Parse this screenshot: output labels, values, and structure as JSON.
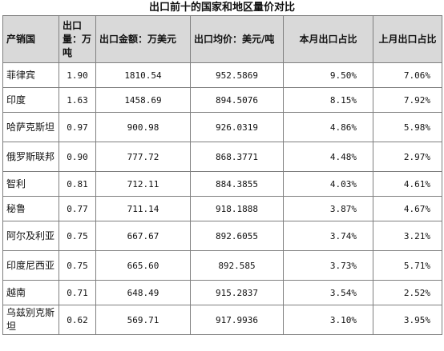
{
  "title": "出口前十的国家和地区量价对比",
  "headers": [
    "产销国",
    "出口量：万吨",
    "出口金额：万美元",
    "出口均价：美元/吨",
    "本月出口占比",
    "上月出口占比"
  ],
  "rows": [
    {
      "country": "菲律宾",
      "volume": "1.90",
      "amount": "1810.54",
      "price": "952.5869",
      "this_month": "9.50%",
      "last_month": "7.06%"
    },
    {
      "country": "印度",
      "volume": "1.63",
      "amount": "1458.69",
      "price": "894.5076",
      "this_month": "8.15%",
      "last_month": "7.92%"
    },
    {
      "country": "哈萨克斯坦",
      "volume": "0.97",
      "amount": "900.98",
      "price": "926.0319",
      "this_month": "4.86%",
      "last_month": "5.98%"
    },
    {
      "country": "俄罗斯联邦",
      "volume": "0.90",
      "amount": "777.72",
      "price": "868.3771",
      "this_month": "4.48%",
      "last_month": "2.97%"
    },
    {
      "country": "智利",
      "volume": "0.81",
      "amount": "712.11",
      "price": "884.3855",
      "this_month": "4.03%",
      "last_month": "4.61%"
    },
    {
      "country": "秘鲁",
      "volume": "0.77",
      "amount": "711.14",
      "price": "918.1888",
      "this_month": "3.87%",
      "last_month": "4.67%"
    },
    {
      "country": "阿尔及利亚",
      "volume": "0.75",
      "amount": "667.67",
      "price": "892.6055",
      "this_month": "3.74%",
      "last_month": "3.21%"
    },
    {
      "country": "印度尼西亚",
      "volume": "0.75",
      "amount": "665.60",
      "price": "892.585",
      "this_month": "3.73%",
      "last_month": "5.71%"
    },
    {
      "country": "越南",
      "volume": "0.71",
      "amount": "648.49",
      "price": "915.2837",
      "this_month": "3.54%",
      "last_month": "2.52%"
    },
    {
      "country": "乌兹别克斯坦",
      "volume": "0.62",
      "amount": "569.71",
      "price": "917.9936",
      "this_month": "3.10%",
      "last_month": "3.95%"
    }
  ]
}
